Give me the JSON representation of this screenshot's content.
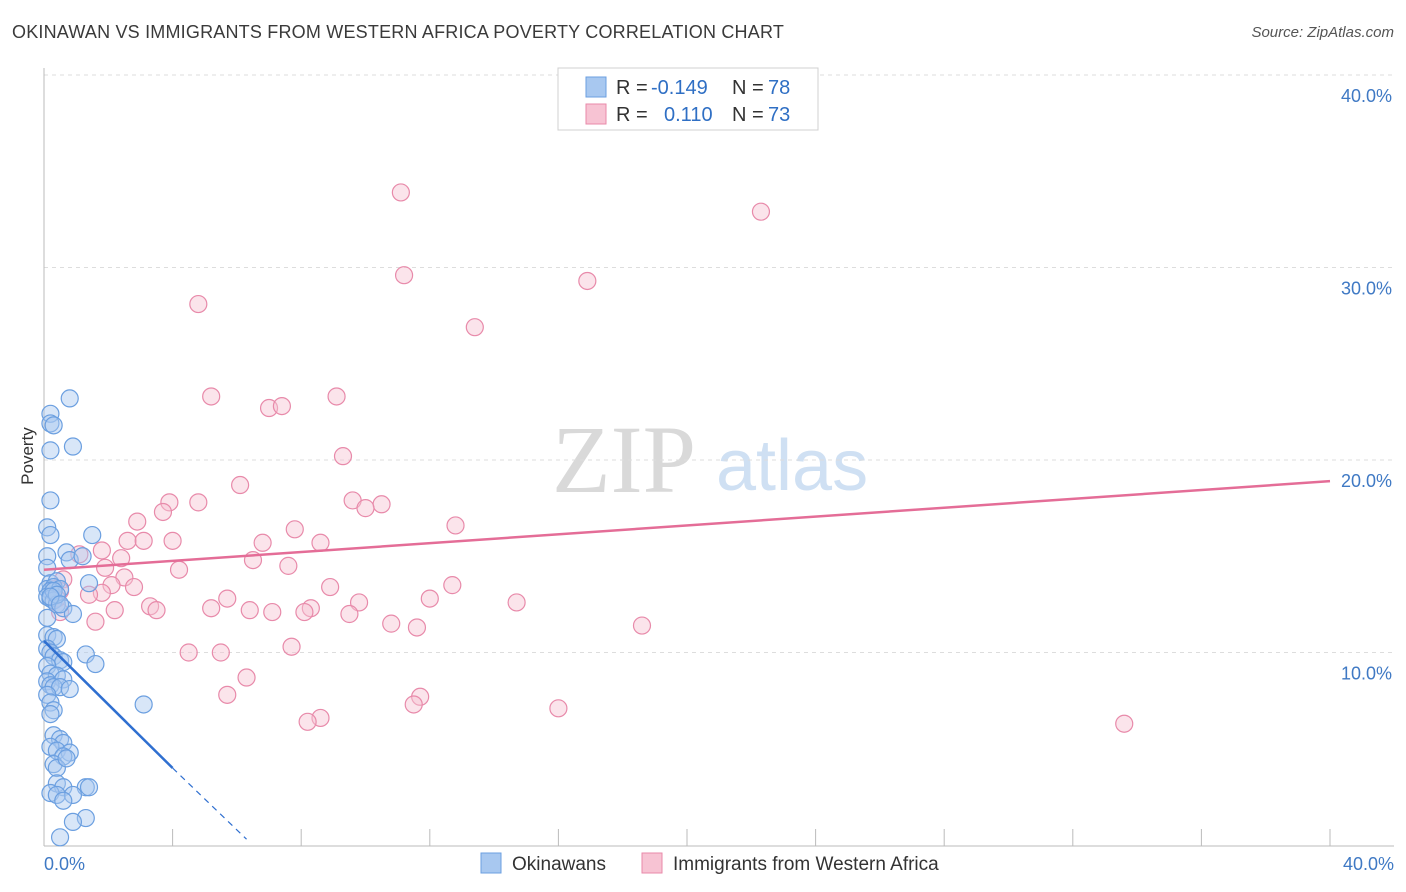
{
  "title": "OKINAWAN VS IMMIGRANTS FROM WESTERN AFRICA POVERTY CORRELATION CHART",
  "source": "Source: ZipAtlas.com",
  "watermark": {
    "part1": "ZIP",
    "part2": "atlas"
  },
  "colors": {
    "blue": "#6b9fe0",
    "blue_fill": "#a8c8f0",
    "blue_line": "#2f6fd0",
    "pink": "#e88aaa",
    "pink_fill": "#f7c3d3",
    "pink_line": "#e46d97",
    "label": "#3f79c4",
    "grid": "#dddddd"
  },
  "legend": {
    "rows": [
      {
        "r_label": "R = ",
        "r_value": "-0.149",
        "n_label": "N = ",
        "n_value": "78",
        "series": "blue"
      },
      {
        "r_label": "R = ",
        "r_value": "0.110",
        "n_label": "N = ",
        "n_value": "73",
        "series": "pink"
      }
    ]
  },
  "chart_data": {
    "type": "scatter",
    "title": "OKINAWAN VS IMMIGRANTS FROM WESTERN AFRICA POVERTY CORRELATION CHART",
    "xlabel": "",
    "ylabel": "Poverty",
    "xlim": [
      0,
      40
    ],
    "ylim": [
      0,
      40
    ],
    "x_tick_labels": [
      "0.0%",
      "40.0%"
    ],
    "y_tick_labels": [
      "10.0%",
      "20.0%",
      "30.0%",
      "40.0%"
    ],
    "y_ticks": [
      10,
      20,
      30,
      40
    ],
    "grid": true,
    "series": [
      {
        "name": "Okinawans",
        "color": "blue",
        "R": -0.149,
        "N": 78,
        "trend": {
          "x0": 0,
          "y0": 10.6,
          "x1": 4.0,
          "y1": 4.0,
          "dash_to_x": 6.3,
          "dash_to_y": 0.3
        },
        "points": [
          [
            0.2,
            22.4
          ],
          [
            0.2,
            21.9
          ],
          [
            0.3,
            21.8
          ],
          [
            0.8,
            23.2
          ],
          [
            0.9,
            20.7
          ],
          [
            0.2,
            20.5
          ],
          [
            0.2,
            17.9
          ],
          [
            0.1,
            16.5
          ],
          [
            0.2,
            16.1
          ],
          [
            1.5,
            16.1
          ],
          [
            0.7,
            15.2
          ],
          [
            0.1,
            15.0
          ],
          [
            0.8,
            14.8
          ],
          [
            1.2,
            15.0
          ],
          [
            0.1,
            14.4
          ],
          [
            0.2,
            13.6
          ],
          [
            0.4,
            13.7
          ],
          [
            1.4,
            13.6
          ],
          [
            0.1,
            13.3
          ],
          [
            0.3,
            13.4
          ],
          [
            0.2,
            13.2
          ],
          [
            0.5,
            13.3
          ],
          [
            0.1,
            12.9
          ],
          [
            0.2,
            12.8
          ],
          [
            0.3,
            12.7
          ],
          [
            0.4,
            12.5
          ],
          [
            0.6,
            12.3
          ],
          [
            0.9,
            12.0
          ],
          [
            0.1,
            11.8
          ],
          [
            0.1,
            10.9
          ],
          [
            0.3,
            10.8
          ],
          [
            0.4,
            10.7
          ],
          [
            0.1,
            10.2
          ],
          [
            0.2,
            10.0
          ],
          [
            0.3,
            9.8
          ],
          [
            0.5,
            9.6
          ],
          [
            0.6,
            9.5
          ],
          [
            1.3,
            9.9
          ],
          [
            1.6,
            9.4
          ],
          [
            0.1,
            9.3
          ],
          [
            0.2,
            8.9
          ],
          [
            0.4,
            8.8
          ],
          [
            0.6,
            8.6
          ],
          [
            0.1,
            8.5
          ],
          [
            0.2,
            8.3
          ],
          [
            0.3,
            8.2
          ],
          [
            0.5,
            8.2
          ],
          [
            0.8,
            8.1
          ],
          [
            0.1,
            7.8
          ],
          [
            0.2,
            7.4
          ],
          [
            0.3,
            7.0
          ],
          [
            0.2,
            6.8
          ],
          [
            3.1,
            7.3
          ],
          [
            0.3,
            5.7
          ],
          [
            0.5,
            5.5
          ],
          [
            0.6,
            5.3
          ],
          [
            0.2,
            5.1
          ],
          [
            0.4,
            4.9
          ],
          [
            0.8,
            4.8
          ],
          [
            0.6,
            4.6
          ],
          [
            0.3,
            4.2
          ],
          [
            0.4,
            4.0
          ],
          [
            0.7,
            4.5
          ],
          [
            0.4,
            3.2
          ],
          [
            0.6,
            3.0
          ],
          [
            1.3,
            3.0
          ],
          [
            1.4,
            3.0
          ],
          [
            0.2,
            2.7
          ],
          [
            0.4,
            2.6
          ],
          [
            0.9,
            2.6
          ],
          [
            0.6,
            2.3
          ],
          [
            1.3,
            1.4
          ],
          [
            0.9,
            1.2
          ],
          [
            0.5,
            0.4
          ],
          [
            0.3,
            13.2
          ],
          [
            0.4,
            13.0
          ],
          [
            0.2,
            12.9
          ],
          [
            0.5,
            12.5
          ]
        ]
      },
      {
        "name": "Immigrants from Western Africa",
        "color": "pink",
        "R": 0.11,
        "N": 73,
        "trend": {
          "x0": 0,
          "y0": 14.3,
          "x1": 40,
          "y1": 18.9
        },
        "points": [
          [
            11.1,
            33.9
          ],
          [
            22.3,
            32.9
          ],
          [
            11.2,
            29.6
          ],
          [
            16.9,
            29.3
          ],
          [
            4.8,
            28.1
          ],
          [
            13.4,
            26.9
          ],
          [
            5.2,
            23.3
          ],
          [
            9.1,
            23.3
          ],
          [
            7.0,
            22.7
          ],
          [
            7.4,
            22.8
          ],
          [
            9.3,
            20.2
          ],
          [
            6.1,
            18.7
          ],
          [
            3.9,
            17.8
          ],
          [
            4.8,
            17.8
          ],
          [
            9.6,
            17.9
          ],
          [
            10.5,
            17.7
          ],
          [
            10.0,
            17.5
          ],
          [
            3.7,
            17.3
          ],
          [
            2.9,
            16.8
          ],
          [
            12.8,
            16.6
          ],
          [
            7.8,
            16.4
          ],
          [
            2.6,
            15.8
          ],
          [
            3.1,
            15.8
          ],
          [
            4.0,
            15.8
          ],
          [
            6.8,
            15.7
          ],
          [
            8.6,
            15.7
          ],
          [
            1.8,
            15.3
          ],
          [
            1.1,
            15.1
          ],
          [
            6.5,
            14.8
          ],
          [
            7.6,
            14.5
          ],
          [
            1.9,
            14.4
          ],
          [
            4.2,
            14.3
          ],
          [
            0.6,
            13.8
          ],
          [
            2.5,
            13.9
          ],
          [
            2.1,
            13.5
          ],
          [
            2.8,
            13.4
          ],
          [
            8.9,
            13.4
          ],
          [
            12.7,
            13.5
          ],
          [
            0.5,
            13.2
          ],
          [
            1.8,
            13.1
          ],
          [
            1.4,
            13.0
          ],
          [
            5.7,
            12.8
          ],
          [
            12.0,
            12.8
          ],
          [
            3.3,
            12.4
          ],
          [
            5.2,
            12.3
          ],
          [
            6.4,
            12.2
          ],
          [
            8.3,
            12.3
          ],
          [
            9.8,
            12.6
          ],
          [
            14.7,
            12.6
          ],
          [
            0.5,
            12.1
          ],
          [
            2.2,
            12.2
          ],
          [
            3.5,
            12.2
          ],
          [
            7.1,
            12.1
          ],
          [
            8.1,
            12.1
          ],
          [
            9.5,
            12.0
          ],
          [
            1.6,
            11.6
          ],
          [
            10.8,
            11.5
          ],
          [
            11.6,
            11.3
          ],
          [
            18.6,
            11.4
          ],
          [
            7.7,
            10.3
          ],
          [
            4.5,
            10.0
          ],
          [
            5.5,
            10.0
          ],
          [
            6.3,
            8.7
          ],
          [
            5.7,
            7.8
          ],
          [
            11.7,
            7.7
          ],
          [
            11.5,
            7.3
          ],
          [
            16.0,
            7.1
          ],
          [
            8.6,
            6.6
          ],
          [
            8.2,
            6.4
          ],
          [
            33.6,
            6.3
          ],
          [
            0.3,
            13.3
          ],
          [
            0.4,
            12.8
          ],
          [
            2.4,
            14.9
          ]
        ]
      }
    ]
  },
  "bottom_legend": [
    {
      "label": "Okinawans",
      "series": "blue"
    },
    {
      "label": "Immigrants from Western Africa",
      "series": "pink"
    }
  ]
}
